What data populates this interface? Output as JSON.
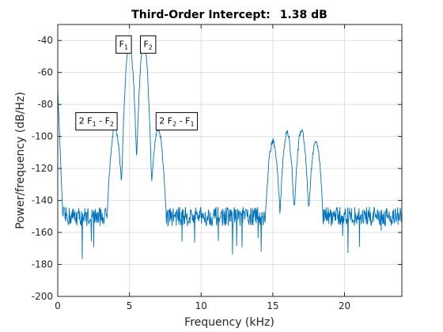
{
  "chart_data": {
    "type": "line",
    "title_label": "Third-Order Intercept:",
    "title_value": "1.38 dB",
    "xlabel": "Frequency (kHz)",
    "ylabel": "Power/frequency (dB/Hz)",
    "xlim": [
      0,
      24
    ],
    "ylim": [
      -200,
      -30
    ],
    "xticks": [
      0,
      5,
      10,
      15,
      20
    ],
    "yticks": [
      -200,
      -180,
      -160,
      -140,
      -120,
      -100,
      -80,
      -60,
      -40
    ],
    "grid": true,
    "line_color": "#0072BD",
    "noise_floor": -150,
    "low_freq_edge": {
      "x": 0,
      "y": -70
    },
    "peaks": [
      {
        "x": 4.0,
        "y": -95,
        "halfwidth": 0.55
      },
      {
        "x": 5.0,
        "y": -42,
        "halfwidth": 0.6
      },
      {
        "x": 6.0,
        "y": -42,
        "halfwidth": 0.6
      },
      {
        "x": 7.0,
        "y": -95,
        "halfwidth": 0.55
      },
      {
        "x": 15.0,
        "y": -103,
        "halfwidth": 0.5
      },
      {
        "x": 16.0,
        "y": -98,
        "halfwidth": 0.5
      },
      {
        "x": 17.0,
        "y": -96,
        "halfwidth": 0.5
      },
      {
        "x": 18.0,
        "y": -103,
        "halfwidth": 0.5
      }
    ],
    "annotations": [
      {
        "id": "f1",
        "main": "F",
        "sub": "1",
        "rest": "",
        "x": 4.6,
        "y": -42
      },
      {
        "id": "f2",
        "main": "F",
        "sub": "2",
        "rest": "",
        "x": 6.3,
        "y": -42
      },
      {
        "id": "2f1-f2",
        "main": "2 F",
        "sub": "1",
        "rest": " - F",
        "sub2": "2",
        "x": 2.7,
        "y": -90
      },
      {
        "id": "2f2-f1",
        "main": "2 F",
        "sub": "2",
        "rest": " - F",
        "sub2": "1",
        "x": 8.3,
        "y": -90
      }
    ]
  }
}
